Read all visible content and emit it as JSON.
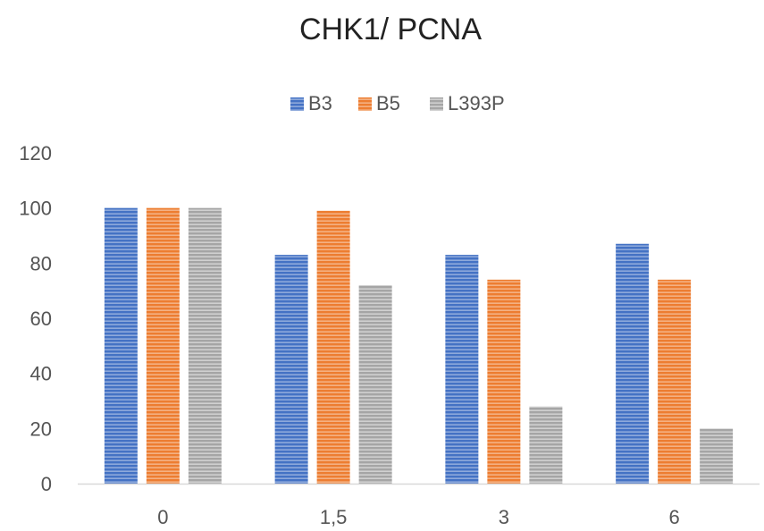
{
  "chart_data": {
    "type": "bar",
    "title": "CHK1/ PCNA",
    "xlabel": "",
    "ylabel": "",
    "categories": [
      "0",
      "1,5",
      "3",
      "6"
    ],
    "series": [
      {
        "name": "B3",
        "values": [
          100,
          83,
          83,
          87
        ],
        "color": "#4472C4"
      },
      {
        "name": "B5",
        "values": [
          100,
          99,
          74,
          74
        ],
        "color": "#ED7D31"
      },
      {
        "name": "L393P",
        "values": [
          100,
          72,
          28,
          20
        ],
        "color": "#A5A5A5"
      }
    ],
    "ylim": [
      0,
      120
    ],
    "yticks": [
      "0",
      "20",
      "40",
      "60",
      "80",
      "100",
      "120"
    ],
    "grid": false,
    "legend_position": "top"
  }
}
